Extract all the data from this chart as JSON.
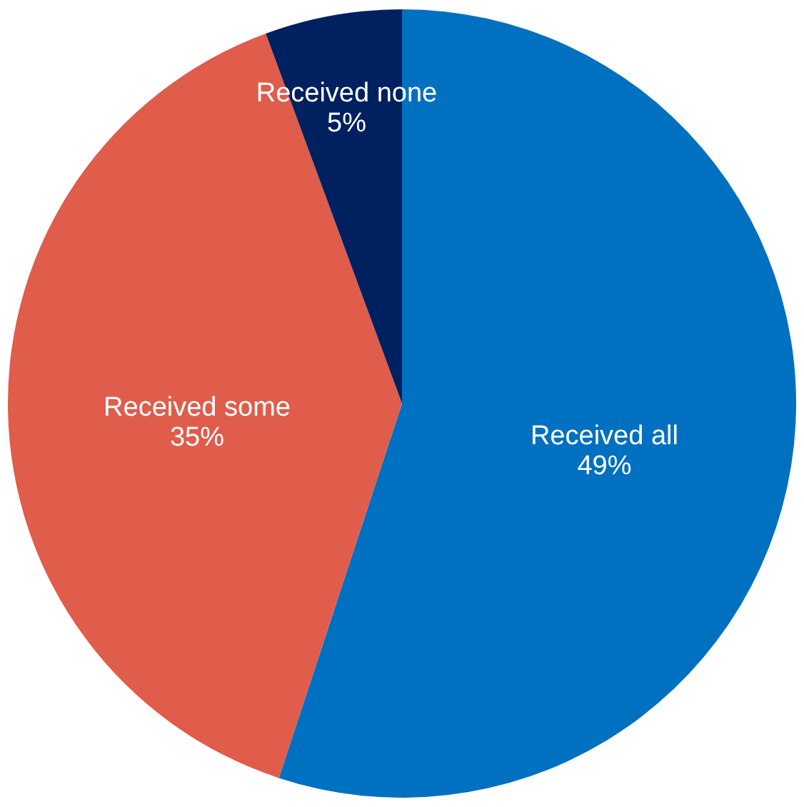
{
  "chart_data": {
    "type": "pie",
    "categories": [
      "Received all",
      "Received some",
      "Received none"
    ],
    "values": [
      49,
      35,
      5
    ],
    "value_labels": [
      "49%",
      "35%",
      "5%"
    ],
    "colors": [
      "#0070c0",
      "#e05c4b",
      "#002060"
    ]
  }
}
